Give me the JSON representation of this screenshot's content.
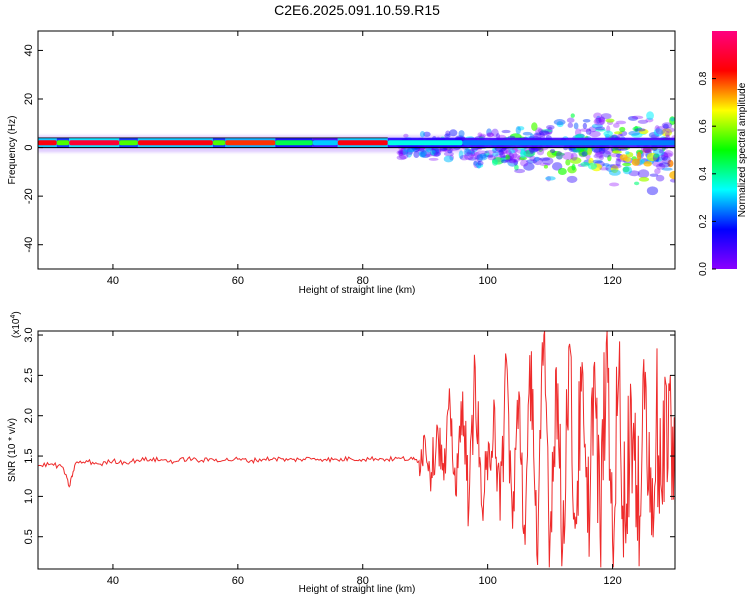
{
  "title": "C2E6.2025.091.10.59.R15",
  "colors": {
    "snr_line": "#ee2a2a",
    "reference_line": "#000000",
    "background": "#ffffff"
  },
  "chart_data": [
    {
      "type": "heatmap",
      "name": "spectrogram",
      "xlabel": "Height of straight line (km)",
      "ylabel": "Frequency (Hz)",
      "xlim": [
        28,
        130
      ],
      "ylim": [
        -50,
        48
      ],
      "xticks": [
        40,
        60,
        80,
        100,
        120
      ],
      "yticks": [
        -40,
        -20,
        0,
        20,
        40
      ],
      "grid": false,
      "colorbar": {
        "label": "Normalized spectral amplitude",
        "range": [
          0,
          1
        ],
        "ticks": [
          "0.0",
          "0.2",
          "0.4",
          "0.6",
          "0.8"
        ],
        "tick_values": [
          0,
          0.2,
          0.4,
          0.6,
          0.8
        ],
        "colormap": [
          "#8b00ff",
          "#0000ff",
          "#00ffff",
          "#00ff00",
          "#ffff00",
          "#ff0000",
          "#ff0080"
        ]
      },
      "ridge": {
        "freq_hz": 2,
        "segments": [
          {
            "x": [
              28,
              31
            ],
            "amplitude": 0.85
          },
          {
            "x": [
              31,
              33
            ],
            "amplitude": 0.55
          },
          {
            "x": [
              33,
              41
            ],
            "amplitude": 0.9
          },
          {
            "x": [
              41,
              44
            ],
            "amplitude": 0.55
          },
          {
            "x": [
              44,
              56
            ],
            "amplitude": 0.85
          },
          {
            "x": [
              56,
              58
            ],
            "amplitude": 0.55
          },
          {
            "x": [
              58,
              66
            ],
            "amplitude": 0.8
          },
          {
            "x": [
              66,
              72
            ],
            "amplitude": 0.45
          },
          {
            "x": [
              72,
              76
            ],
            "amplitude": 0.3
          },
          {
            "x": [
              76,
              84
            ],
            "amplitude": 0.85
          },
          {
            "x": [
              84,
              96
            ],
            "amplitude": 0.35
          },
          {
            "x": [
              96,
              130
            ],
            "amplitude": 0.25
          }
        ]
      },
      "noise_region": {
        "x_start": 86,
        "x_end": 130,
        "freq_spread_hz": [
          -12,
          15
        ]
      }
    },
    {
      "type": "line",
      "name": "snr",
      "xlabel": "Height of straight line (km)",
      "ylabel": "SNR (10 * v/v)",
      "scale_label": "(x10",
      "scale_exponent": "4",
      "scale_suffix": ")",
      "xlim": [
        28,
        130
      ],
      "ylim": [
        0.1,
        3.05
      ],
      "xticks": [
        40,
        60,
        80,
        100,
        120
      ],
      "yticks": [
        0.5,
        1.0,
        1.5,
        2.0,
        2.5,
        3.0
      ],
      "ytick_labels": [
        "0.5",
        "1.0",
        "1.5",
        "2.0",
        "2.5",
        "3.0"
      ],
      "grid": false,
      "series": [
        {
          "color": "#ee2a2a",
          "x": [
            28,
            30,
            32,
            33,
            34,
            36,
            38,
            40,
            42,
            44,
            46,
            48,
            50,
            52,
            54,
            56,
            58,
            60,
            62,
            64,
            66,
            68,
            70,
            72,
            74,
            76,
            78,
            80,
            82,
            84,
            86,
            88,
            89,
            90,
            91,
            92,
            93,
            94,
            95,
            96,
            97,
            98,
            99,
            100,
            101,
            102,
            103,
            104,
            105,
            106,
            107,
            108,
            109,
            110,
            111,
            112,
            113,
            114,
            115,
            116,
            117,
            118,
            119,
            120,
            121,
            122,
            123,
            124,
            125,
            126,
            127,
            128,
            129,
            130
          ],
          "values": [
            1.38,
            1.4,
            1.36,
            1.12,
            1.41,
            1.43,
            1.4,
            1.44,
            1.42,
            1.45,
            1.46,
            1.45,
            1.43,
            1.47,
            1.44,
            1.46,
            1.45,
            1.46,
            1.44,
            1.46,
            1.47,
            1.45,
            1.46,
            1.47,
            1.46,
            1.45,
            1.47,
            1.46,
            1.47,
            1.46,
            1.47,
            1.46,
            1.44,
            1.7,
            1.3,
            1.85,
            1.2,
            2.1,
            1.0,
            2.3,
            0.85,
            2.6,
            0.9,
            1.2,
            2.2,
            0.7,
            2.7,
            0.6,
            2.3,
            0.4,
            2.8,
            0.15,
            3.0,
            0.5,
            2.6,
            0.35,
            2.85,
            0.6,
            2.3,
            0.55,
            2.6,
            0.5,
            2.9,
            0.45,
            2.5,
            0.7,
            2.2,
            0.45,
            2.7,
            0.8,
            2.0,
            0.9,
            2.4,
            0.9
          ]
        }
      ]
    }
  ]
}
